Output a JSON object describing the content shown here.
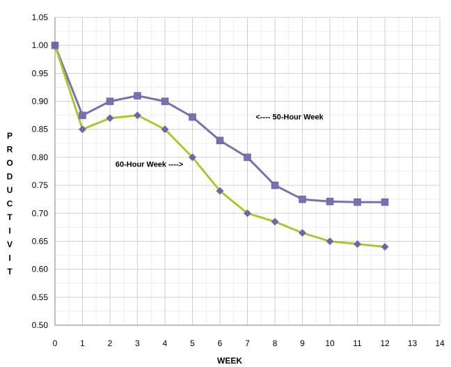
{
  "chart_data": {
    "type": "line",
    "title": "",
    "xlabel": "WEEK",
    "ylabel": "PRODUCTIVIT",
    "xlim": [
      0,
      14
    ],
    "ylim": [
      0.5,
      1.05
    ],
    "x_ticks": [
      0,
      1,
      2,
      3,
      4,
      5,
      6,
      7,
      8,
      9,
      10,
      11,
      12,
      13,
      14
    ],
    "y_ticks": [
      "0.50",
      "0.55",
      "0.60",
      "0.65",
      "0.70",
      "0.75",
      "0.80",
      "0.85",
      "0.90",
      "0.95",
      "1.00",
      "1.05"
    ],
    "grid": true,
    "legend": "none",
    "series": [
      {
        "marker": "square",
        "color": "#7A6FB0",
        "x": [
          0,
          1,
          2,
          3,
          4,
          5,
          6,
          7,
          8,
          9,
          10,
          11,
          12
        ],
        "values": [
          1.0,
          0.875,
          0.9,
          0.91,
          0.9,
          0.872,
          0.83,
          0.8,
          0.75,
          0.725,
          0.721,
          0.72,
          0.72
        ]
      },
      {
        "marker": "diamond",
        "color": "#A8C92C",
        "x": [
          0,
          1,
          2,
          3,
          4,
          5,
          6,
          7,
          8,
          9,
          10,
          11,
          12
        ],
        "values": [
          1.0,
          0.85,
          0.87,
          0.875,
          0.85,
          0.8,
          0.74,
          0.7,
          0.685,
          0.665,
          0.65,
          0.645,
          0.64
        ]
      }
    ],
    "annotations": [
      {
        "text": "<---- 50-Hour Week",
        "x": 7.3,
        "y": 0.868
      },
      {
        "text": "60-Hour Week ---->",
        "x": 2.2,
        "y": 0.783
      }
    ]
  }
}
